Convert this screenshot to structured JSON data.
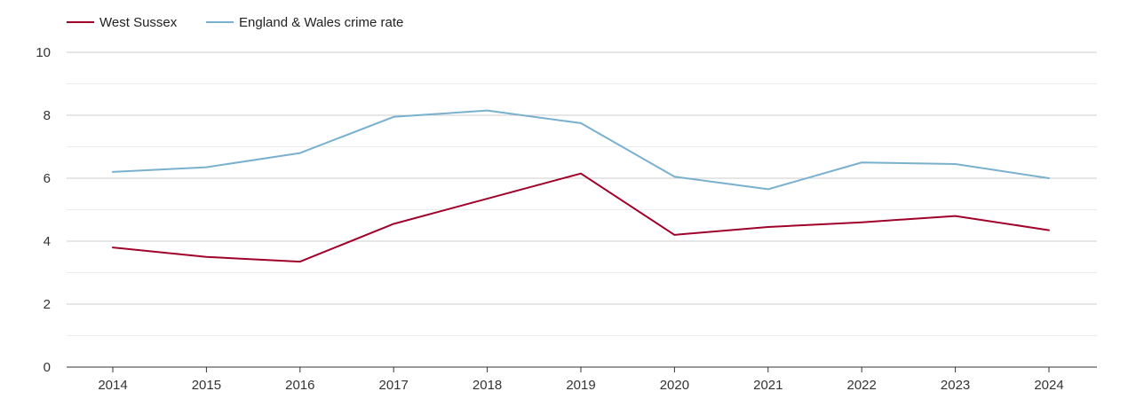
{
  "chart_data": {
    "type": "line",
    "title": "",
    "xlabel": "",
    "ylabel": "",
    "ylim": [
      0,
      10
    ],
    "y_ticks": [
      0,
      2,
      4,
      6,
      8,
      10
    ],
    "y_tick_labels": [
      "0",
      "2",
      "4",
      "6",
      "8",
      "10"
    ],
    "minor_gridlines": [
      1,
      3,
      5,
      7,
      9
    ],
    "grid": true,
    "legend_position": "top-left",
    "categories": [
      "2014",
      "2015",
      "2016",
      "2017",
      "2018",
      "2019",
      "2020",
      "2021",
      "2022",
      "2023",
      "2024"
    ],
    "series": [
      {
        "name": "West Sussex",
        "color": "#a0002a",
        "values": [
          3.8,
          3.5,
          3.35,
          4.55,
          5.35,
          6.15,
          4.2,
          4.45,
          4.6,
          4.8,
          4.35
        ]
      },
      {
        "name": "England & Wales crime rate",
        "color": "#7ab0cf",
        "values": [
          6.2,
          6.35,
          6.8,
          7.95,
          8.15,
          7.75,
          6.05,
          5.65,
          6.5,
          6.45,
          6.0
        ]
      }
    ]
  }
}
